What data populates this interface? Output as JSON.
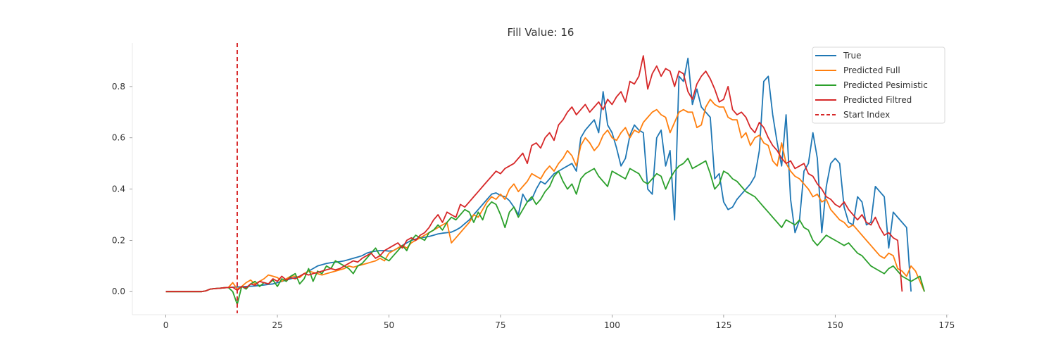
{
  "chart_data": {
    "type": "line",
    "title": "Fill Value: 16",
    "xlabel": "",
    "ylabel": "",
    "xlim": [
      -7.5,
      175.5
    ],
    "ylim": [
      -0.09,
      0.97
    ],
    "xticks": [
      0,
      25,
      50,
      75,
      100,
      125,
      150,
      175
    ],
    "yticks": [
      0.0,
      0.2,
      0.4,
      0.6,
      0.8
    ],
    "xtick_labels": [
      "0",
      "25",
      "50",
      "75",
      "100",
      "125",
      "150",
      "175"
    ],
    "ytick_labels": [
      "0.0",
      "0.2",
      "0.4",
      "0.6",
      "0.8"
    ],
    "grid": false,
    "legend_position": "top-right",
    "vline": {
      "name": "Start Index",
      "x": 16,
      "color": "#d62728",
      "style": "dashed"
    },
    "series": [
      {
        "name": "True",
        "color": "#1f77b4",
        "start": 0,
        "values": [
          0.0,
          0.0,
          0.0,
          0.0,
          0.0,
          0.0,
          0.0,
          0.0,
          0.0,
          0.003,
          0.01,
          0.012,
          0.013,
          0.015,
          0.016,
          0.017,
          0.018,
          0.019,
          0.02,
          0.021,
          0.022,
          0.024,
          0.026,
          0.028,
          0.03,
          0.035,
          0.04,
          0.045,
          0.05,
          0.055,
          0.06,
          0.07,
          0.08,
          0.09,
          0.1,
          0.105,
          0.11,
          0.113,
          0.115,
          0.117,
          0.12,
          0.125,
          0.13,
          0.135,
          0.14,
          0.15,
          0.155,
          0.158,
          0.16,
          0.16,
          0.158,
          0.16,
          0.17,
          0.18,
          0.19,
          0.2,
          0.205,
          0.21,
          0.212,
          0.215,
          0.22,
          0.225,
          0.228,
          0.23,
          0.232,
          0.24,
          0.25,
          0.265,
          0.28,
          0.3,
          0.32,
          0.34,
          0.36,
          0.38,
          0.385,
          0.375,
          0.37,
          0.355,
          0.33,
          0.3,
          0.38,
          0.35,
          0.36,
          0.4,
          0.43,
          0.42,
          0.44,
          0.46,
          0.47,
          0.48,
          0.49,
          0.5,
          0.47,
          0.6,
          0.63,
          0.65,
          0.67,
          0.62,
          0.78,
          0.65,
          0.62,
          0.56,
          0.49,
          0.52,
          0.61,
          0.65,
          0.63,
          0.62,
          0.4,
          0.38,
          0.6,
          0.63,
          0.49,
          0.55,
          0.28,
          0.84,
          0.82,
          0.91,
          0.73,
          0.79,
          0.72,
          0.7,
          0.68,
          0.44,
          0.46,
          0.35,
          0.32,
          0.33,
          0.36,
          0.38,
          0.4,
          0.42,
          0.45,
          0.55,
          0.82,
          0.84,
          0.69,
          0.58,
          0.49,
          0.69,
          0.36,
          0.23,
          0.28,
          0.47,
          0.5,
          0.62,
          0.52,
          0.23,
          0.41,
          0.5,
          0.52,
          0.5,
          0.33,
          0.27,
          0.26,
          0.37,
          0.35,
          0.26,
          0.27,
          0.41,
          0.39,
          0.37,
          0.17,
          0.31,
          0.29,
          0.27,
          0.25,
          0.0
        ]
      },
      {
        "name": "Predicted Full",
        "color": "#ff7f0e",
        "start": 0,
        "values": [
          0.0,
          0.0,
          0.0,
          0.0,
          0.0,
          0.0,
          0.0,
          0.0,
          0.0,
          0.003,
          0.01,
          0.012,
          0.013,
          0.015,
          0.016,
          0.035,
          0.01,
          0.02,
          0.035,
          0.045,
          0.03,
          0.04,
          0.05,
          0.065,
          0.06,
          0.055,
          0.04,
          0.05,
          0.06,
          0.06,
          0.055,
          0.07,
          0.08,
          0.075,
          0.07,
          0.065,
          0.07,
          0.075,
          0.08,
          0.085,
          0.09,
          0.1,
          0.095,
          0.1,
          0.105,
          0.11,
          0.115,
          0.12,
          0.13,
          0.12,
          0.15,
          0.16,
          0.17,
          0.18,
          0.17,
          0.19,
          0.2,
          0.21,
          0.22,
          0.23,
          0.24,
          0.25,
          0.26,
          0.27,
          0.19,
          0.21,
          0.23,
          0.25,
          0.27,
          0.3,
          0.29,
          0.32,
          0.35,
          0.37,
          0.36,
          0.38,
          0.36,
          0.4,
          0.42,
          0.39,
          0.41,
          0.43,
          0.46,
          0.45,
          0.44,
          0.47,
          0.49,
          0.47,
          0.5,
          0.52,
          0.55,
          0.53,
          0.49,
          0.57,
          0.6,
          0.58,
          0.55,
          0.57,
          0.61,
          0.63,
          0.6,
          0.59,
          0.62,
          0.64,
          0.6,
          0.63,
          0.62,
          0.66,
          0.68,
          0.7,
          0.71,
          0.69,
          0.68,
          0.62,
          0.66,
          0.7,
          0.71,
          0.7,
          0.7,
          0.64,
          0.65,
          0.72,
          0.75,
          0.73,
          0.72,
          0.72,
          0.68,
          0.67,
          0.67,
          0.6,
          0.62,
          0.57,
          0.6,
          0.61,
          0.58,
          0.57,
          0.51,
          0.49,
          0.58,
          0.5,
          0.47,
          0.45,
          0.44,
          0.42,
          0.4,
          0.37,
          0.38,
          0.35,
          0.36,
          0.32,
          0.3,
          0.28,
          0.27,
          0.25,
          0.26,
          0.24,
          0.22,
          0.2,
          0.18,
          0.16,
          0.14,
          0.13,
          0.15,
          0.14,
          0.09,
          0.08,
          0.06,
          0.1,
          0.08,
          0.04,
          0.0
        ]
      },
      {
        "name": "Predicted Pesimistic",
        "color": "#2ca02c",
        "start": 0,
        "values": [
          0.0,
          0.0,
          0.0,
          0.0,
          0.0,
          0.0,
          0.0,
          0.0,
          0.0,
          0.003,
          0.01,
          0.012,
          0.013,
          0.015,
          0.016,
          0.0,
          -0.05,
          0.02,
          0.01,
          0.03,
          0.04,
          0.02,
          0.035,
          0.03,
          0.045,
          0.02,
          0.05,
          0.04,
          0.06,
          0.07,
          0.03,
          0.05,
          0.09,
          0.04,
          0.08,
          0.07,
          0.1,
          0.09,
          0.12,
          0.11,
          0.1,
          0.09,
          0.07,
          0.1,
          0.11,
          0.13,
          0.15,
          0.17,
          0.14,
          0.13,
          0.12,
          0.14,
          0.16,
          0.18,
          0.16,
          0.2,
          0.22,
          0.21,
          0.2,
          0.23,
          0.24,
          0.26,
          0.24,
          0.27,
          0.29,
          0.28,
          0.3,
          0.32,
          0.31,
          0.27,
          0.31,
          0.28,
          0.33,
          0.35,
          0.34,
          0.3,
          0.25,
          0.31,
          0.33,
          0.29,
          0.32,
          0.35,
          0.37,
          0.34,
          0.36,
          0.39,
          0.41,
          0.45,
          0.47,
          0.43,
          0.4,
          0.42,
          0.38,
          0.44,
          0.46,
          0.47,
          0.48,
          0.45,
          0.43,
          0.41,
          0.47,
          0.46,
          0.45,
          0.44,
          0.48,
          0.47,
          0.46,
          0.43,
          0.42,
          0.44,
          0.46,
          0.45,
          0.4,
          0.44,
          0.47,
          0.49,
          0.5,
          0.52,
          0.48,
          0.49,
          0.5,
          0.51,
          0.46,
          0.4,
          0.42,
          0.47,
          0.46,
          0.44,
          0.43,
          0.41,
          0.39,
          0.38,
          0.37,
          0.35,
          0.33,
          0.31,
          0.29,
          0.27,
          0.25,
          0.28,
          0.27,
          0.26,
          0.28,
          0.25,
          0.24,
          0.2,
          0.18,
          0.2,
          0.22,
          0.21,
          0.2,
          0.19,
          0.18,
          0.19,
          0.17,
          0.15,
          0.14,
          0.12,
          0.1,
          0.09,
          0.08,
          0.07,
          0.09,
          0.1,
          0.08,
          0.06,
          0.05,
          0.04,
          0.05,
          0.06,
          0.0
        ]
      },
      {
        "name": "Predicted Filtred",
        "color": "#d62728",
        "start": 0,
        "values": [
          0.0,
          0.0,
          0.0,
          0.0,
          0.0,
          0.0,
          0.0,
          0.0,
          0.0,
          0.003,
          0.01,
          0.012,
          0.013,
          0.015,
          0.016,
          0.017,
          0.005,
          0.02,
          0.015,
          0.03,
          0.025,
          0.04,
          0.035,
          0.03,
          0.05,
          0.04,
          0.06,
          0.045,
          0.055,
          0.05,
          0.06,
          0.07,
          0.065,
          0.07,
          0.075,
          0.08,
          0.085,
          0.09,
          0.085,
          0.09,
          0.1,
          0.11,
          0.12,
          0.115,
          0.13,
          0.14,
          0.15,
          0.13,
          0.14,
          0.16,
          0.17,
          0.18,
          0.19,
          0.17,
          0.2,
          0.21,
          0.2,
          0.22,
          0.23,
          0.25,
          0.28,
          0.3,
          0.27,
          0.31,
          0.3,
          0.29,
          0.34,
          0.33,
          0.35,
          0.37,
          0.39,
          0.41,
          0.43,
          0.45,
          0.47,
          0.46,
          0.48,
          0.49,
          0.5,
          0.52,
          0.54,
          0.5,
          0.57,
          0.58,
          0.56,
          0.6,
          0.62,
          0.59,
          0.65,
          0.67,
          0.7,
          0.72,
          0.69,
          0.71,
          0.73,
          0.7,
          0.72,
          0.74,
          0.71,
          0.75,
          0.73,
          0.76,
          0.78,
          0.74,
          0.82,
          0.81,
          0.84,
          0.92,
          0.79,
          0.85,
          0.88,
          0.84,
          0.87,
          0.86,
          0.8,
          0.86,
          0.85,
          0.78,
          0.75,
          0.81,
          0.84,
          0.86,
          0.83,
          0.79,
          0.74,
          0.75,
          0.8,
          0.71,
          0.69,
          0.7,
          0.68,
          0.64,
          0.62,
          0.66,
          0.64,
          0.6,
          0.57,
          0.55,
          0.52,
          0.5,
          0.51,
          0.48,
          0.49,
          0.5,
          0.46,
          0.45,
          0.42,
          0.4,
          0.37,
          0.36,
          0.34,
          0.33,
          0.35,
          0.32,
          0.3,
          0.28,
          0.3,
          0.27,
          0.26,
          0.29,
          0.25,
          0.22,
          0.23,
          0.21,
          0.2,
          0.0
        ]
      }
    ]
  }
}
